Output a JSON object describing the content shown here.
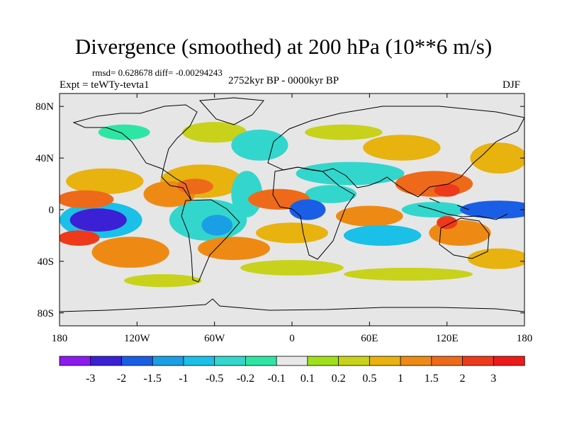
{
  "header": {
    "title": "Divergence (smoothed) at 200 hPa (10**6 m/s)",
    "stats": "rmsd= 0.628678 diff= -0.00294243",
    "experiment": "Expt = teWTy-tevta1",
    "period": "2752kyr BP - 0000kyr BP",
    "season": "DJF"
  },
  "chart_data": {
    "type": "heatmap",
    "title": "Divergence (smoothed) at 200 hPa (10**6 m/s)",
    "xlabel": "",
    "ylabel": "",
    "xlim": [
      -180,
      180
    ],
    "ylim": [
      -90,
      90
    ],
    "x_ticks": [
      {
        "value": -180,
        "label": "180"
      },
      {
        "value": -120,
        "label": "120W"
      },
      {
        "value": -60,
        "label": "60W"
      },
      {
        "value": 0,
        "label": "0"
      },
      {
        "value": 60,
        "label": "60E"
      },
      {
        "value": 120,
        "label": "120E"
      },
      {
        "value": 180,
        "label": "180"
      }
    ],
    "y_ticks": [
      {
        "value": 80,
        "label": "80N"
      },
      {
        "value": 40,
        "label": "40N"
      },
      {
        "value": 0,
        "label": "0"
      },
      {
        "value": -40,
        "label": "40S"
      },
      {
        "value": -80,
        "label": "80S"
      }
    ],
    "colorbar": {
      "labels": [
        "-3",
        "-2",
        "-1.5",
        "-1",
        "-0.5",
        "-0.2",
        "-0.1",
        "0.1",
        "0.2",
        "0.5",
        "1",
        "1.5",
        "2",
        "3"
      ],
      "colors": [
        "#8c1aee",
        "#3b20d6",
        "#1a5ee6",
        "#1a9ee6",
        "#1ac0e8",
        "#33d6cc",
        "#2ee6a4",
        "#e8e8e8",
        "#9fe01a",
        "#c8d21a",
        "#e8b20f",
        "#ee8a14",
        "#ee6a1a",
        "#ee3a1a",
        "#ee1a1a"
      ],
      "background_label": "-0.1 to 0.1"
    },
    "regions": [
      {
        "lon": -150,
        "lat": -8,
        "rx": 22,
        "ry": 9,
        "value": -3
      },
      {
        "lon": -148,
        "lat": -8,
        "rx": 32,
        "ry": 14,
        "value": -1
      },
      {
        "lon": -160,
        "lat": 8,
        "rx": 22,
        "ry": 7,
        "value": 1.5
      },
      {
        "lon": -145,
        "lat": 22,
        "rx": 30,
        "ry": 10,
        "value": 0.5
      },
      {
        "lon": -165,
        "lat": -22,
        "rx": 16,
        "ry": 6,
        "value": 2
      },
      {
        "lon": -125,
        "lat": -33,
        "rx": 30,
        "ry": 12,
        "value": 1
      },
      {
        "lon": -95,
        "lat": 12,
        "rx": 20,
        "ry": 10,
        "value": 1
      },
      {
        "lon": -70,
        "lat": 22,
        "rx": 32,
        "ry": 13,
        "value": 0.5
      },
      {
        "lon": -75,
        "lat": 18,
        "rx": 14,
        "ry": 6,
        "value": 1.5
      },
      {
        "lon": -65,
        "lat": -8,
        "rx": 30,
        "ry": 16,
        "value": -0.5
      },
      {
        "lon": -58,
        "lat": -12,
        "rx": 12,
        "ry": 8,
        "value": -1.5
      },
      {
        "lon": -45,
        "lat": -30,
        "rx": 28,
        "ry": 9,
        "value": 1
      },
      {
        "lon": -35,
        "lat": 12,
        "rx": 12,
        "ry": 18,
        "value": -0.5
      },
      {
        "lon": -25,
        "lat": 50,
        "rx": 22,
        "ry": 12,
        "value": -0.5
      },
      {
        "lon": -60,
        "lat": 60,
        "rx": 25,
        "ry": 8,
        "value": 0.2
      },
      {
        "lon": -10,
        "lat": 8,
        "rx": 24,
        "ry": 8,
        "value": 1.5
      },
      {
        "lon": 12,
        "lat": 0,
        "rx": 14,
        "ry": 8,
        "value": -2
      },
      {
        "lon": 30,
        "lat": 12,
        "rx": 20,
        "ry": 7,
        "value": -0.5
      },
      {
        "lon": 0,
        "lat": -18,
        "rx": 28,
        "ry": 8,
        "value": 0.5
      },
      {
        "lon": 45,
        "lat": 28,
        "rx": 42,
        "ry": 9,
        "value": -0.5
      },
      {
        "lon": 60,
        "lat": -5,
        "rx": 26,
        "ry": 8,
        "value": 1
      },
      {
        "lon": 70,
        "lat": -20,
        "rx": 30,
        "ry": 8,
        "value": -1
      },
      {
        "lon": 110,
        "lat": 20,
        "rx": 30,
        "ry": 10,
        "value": 1.5
      },
      {
        "lon": 120,
        "lat": 15,
        "rx": 10,
        "ry": 5,
        "value": 2
      },
      {
        "lon": 85,
        "lat": 48,
        "rx": 30,
        "ry": 10,
        "value": 0.5
      },
      {
        "lon": 110,
        "lat": 0,
        "rx": 25,
        "ry": 6,
        "value": -0.5
      },
      {
        "lon": 160,
        "lat": 0,
        "rx": 30,
        "ry": 7,
        "value": -2
      },
      {
        "lon": 130,
        "lat": -18,
        "rx": 24,
        "ry": 10,
        "value": 1
      },
      {
        "lon": 120,
        "lat": -10,
        "rx": 8,
        "ry": 5,
        "value": 2
      },
      {
        "lon": 160,
        "lat": 40,
        "rx": 22,
        "ry": 12,
        "value": 0.5
      },
      {
        "lon": 160,
        "lat": -38,
        "rx": 24,
        "ry": 8,
        "value": 0.5
      },
      {
        "lon": 0,
        "lat": -45,
        "rx": 40,
        "ry": 6,
        "value": 0.2
      },
      {
        "lon": 90,
        "lat": -50,
        "rx": 50,
        "ry": 5,
        "value": 0.2
      },
      {
        "lon": -100,
        "lat": -55,
        "rx": 30,
        "ry": 5,
        "value": 0.2
      },
      {
        "lon": 40,
        "lat": 60,
        "rx": 30,
        "ry": 6,
        "value": 0.2
      },
      {
        "lon": -130,
        "lat": 60,
        "rx": 20,
        "ry": 6,
        "value": -0.2
      }
    ]
  }
}
